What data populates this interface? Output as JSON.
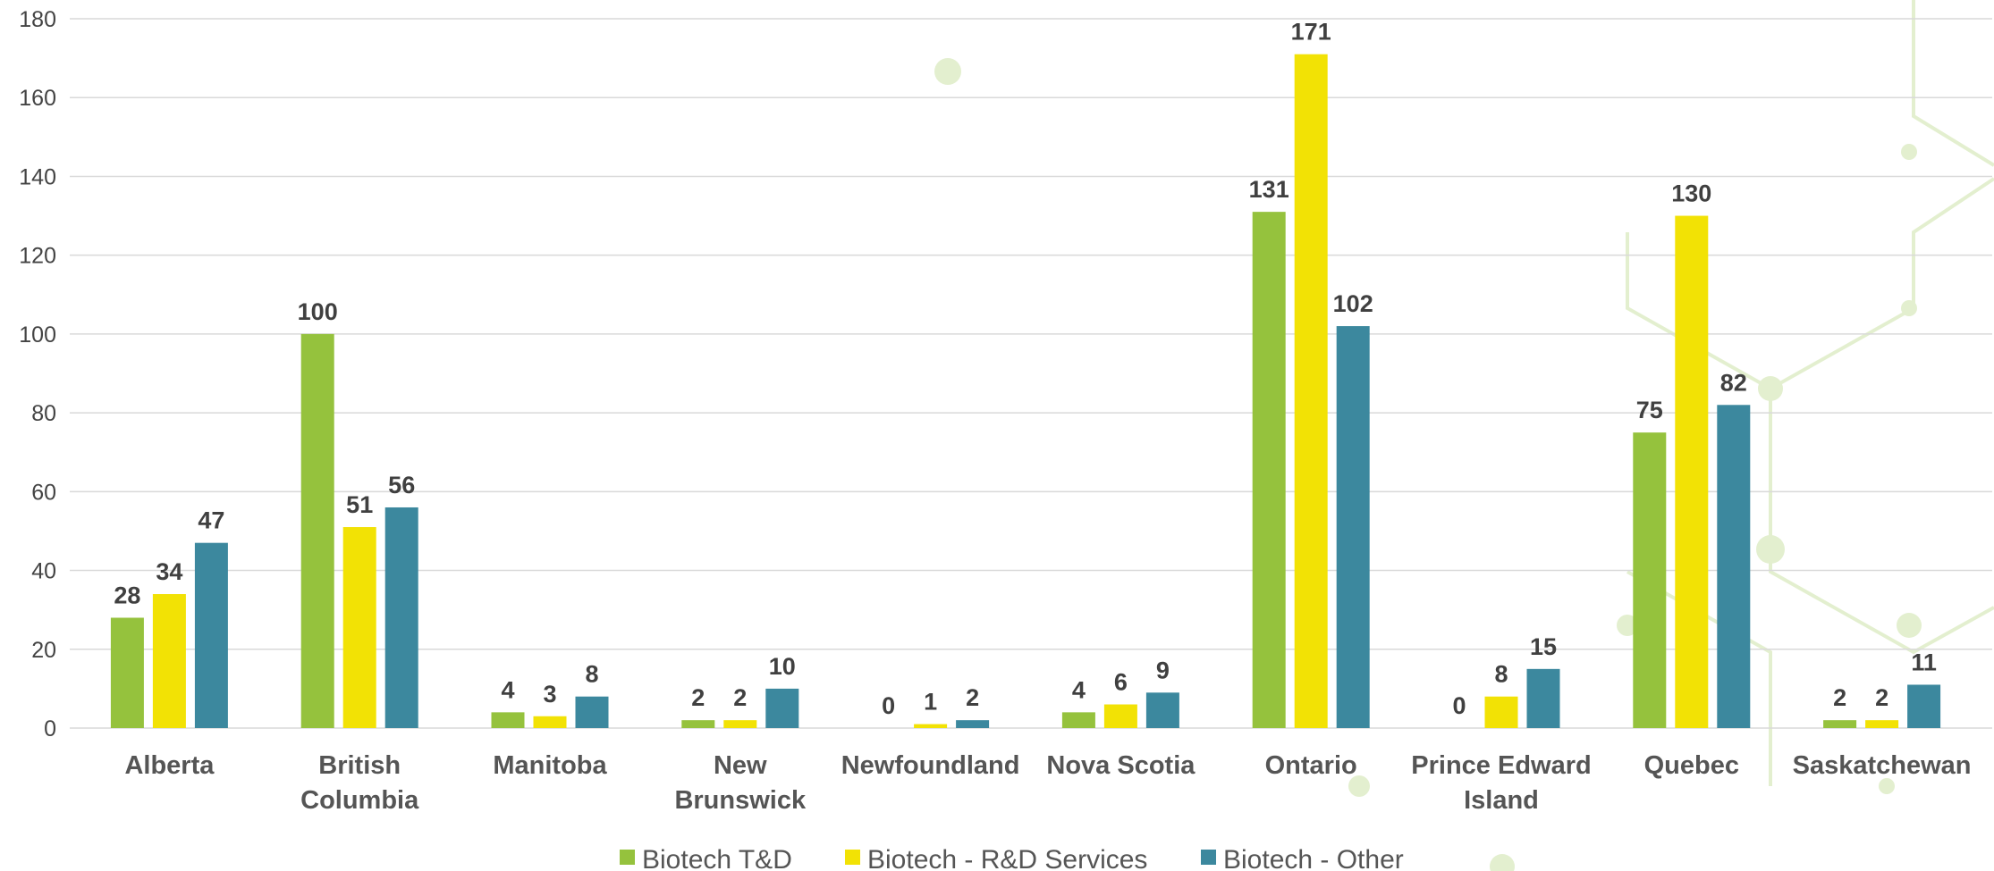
{
  "chart_data": {
    "type": "bar",
    "categories": [
      "Alberta",
      "British Columbia",
      "Manitoba",
      "New Brunswick",
      "Newfoundland",
      "Nova Scotia",
      "Ontario",
      "Prince Edward Island",
      "Quebec",
      "Saskatchewan"
    ],
    "category_lines": [
      [
        "Alberta"
      ],
      [
        "British",
        "Columbia"
      ],
      [
        "Manitoba"
      ],
      [
        "New",
        "Brunswick"
      ],
      [
        "Newfoundland"
      ],
      [
        "Nova Scotia"
      ],
      [
        "Ontario"
      ],
      [
        "Prince Edward",
        "Island"
      ],
      [
        "Quebec"
      ],
      [
        "Saskatchewan"
      ]
    ],
    "series": [
      {
        "name": "Biotech T&D",
        "color": "#95c23d",
        "values": [
          28,
          100,
          4,
          2,
          0,
          4,
          131,
          0,
          75,
          2
        ]
      },
      {
        "name": "Biotech - R&D Services",
        "color": "#f2e205",
        "values": [
          34,
          51,
          3,
          2,
          1,
          6,
          171,
          8,
          130,
          2
        ]
      },
      {
        "name": "Biotech - Other",
        "color": "#3c889e",
        "values": [
          47,
          56,
          8,
          10,
          2,
          9,
          102,
          15,
          82,
          11
        ]
      }
    ],
    "ylim": [
      0,
      180
    ],
    "yticks": [
      0,
      20,
      40,
      60,
      80,
      100,
      120,
      140,
      160,
      180
    ],
    "title": "",
    "xlabel": "",
    "ylabel": "",
    "grid": true,
    "legend_position": "bottom",
    "data_labels": true
  }
}
